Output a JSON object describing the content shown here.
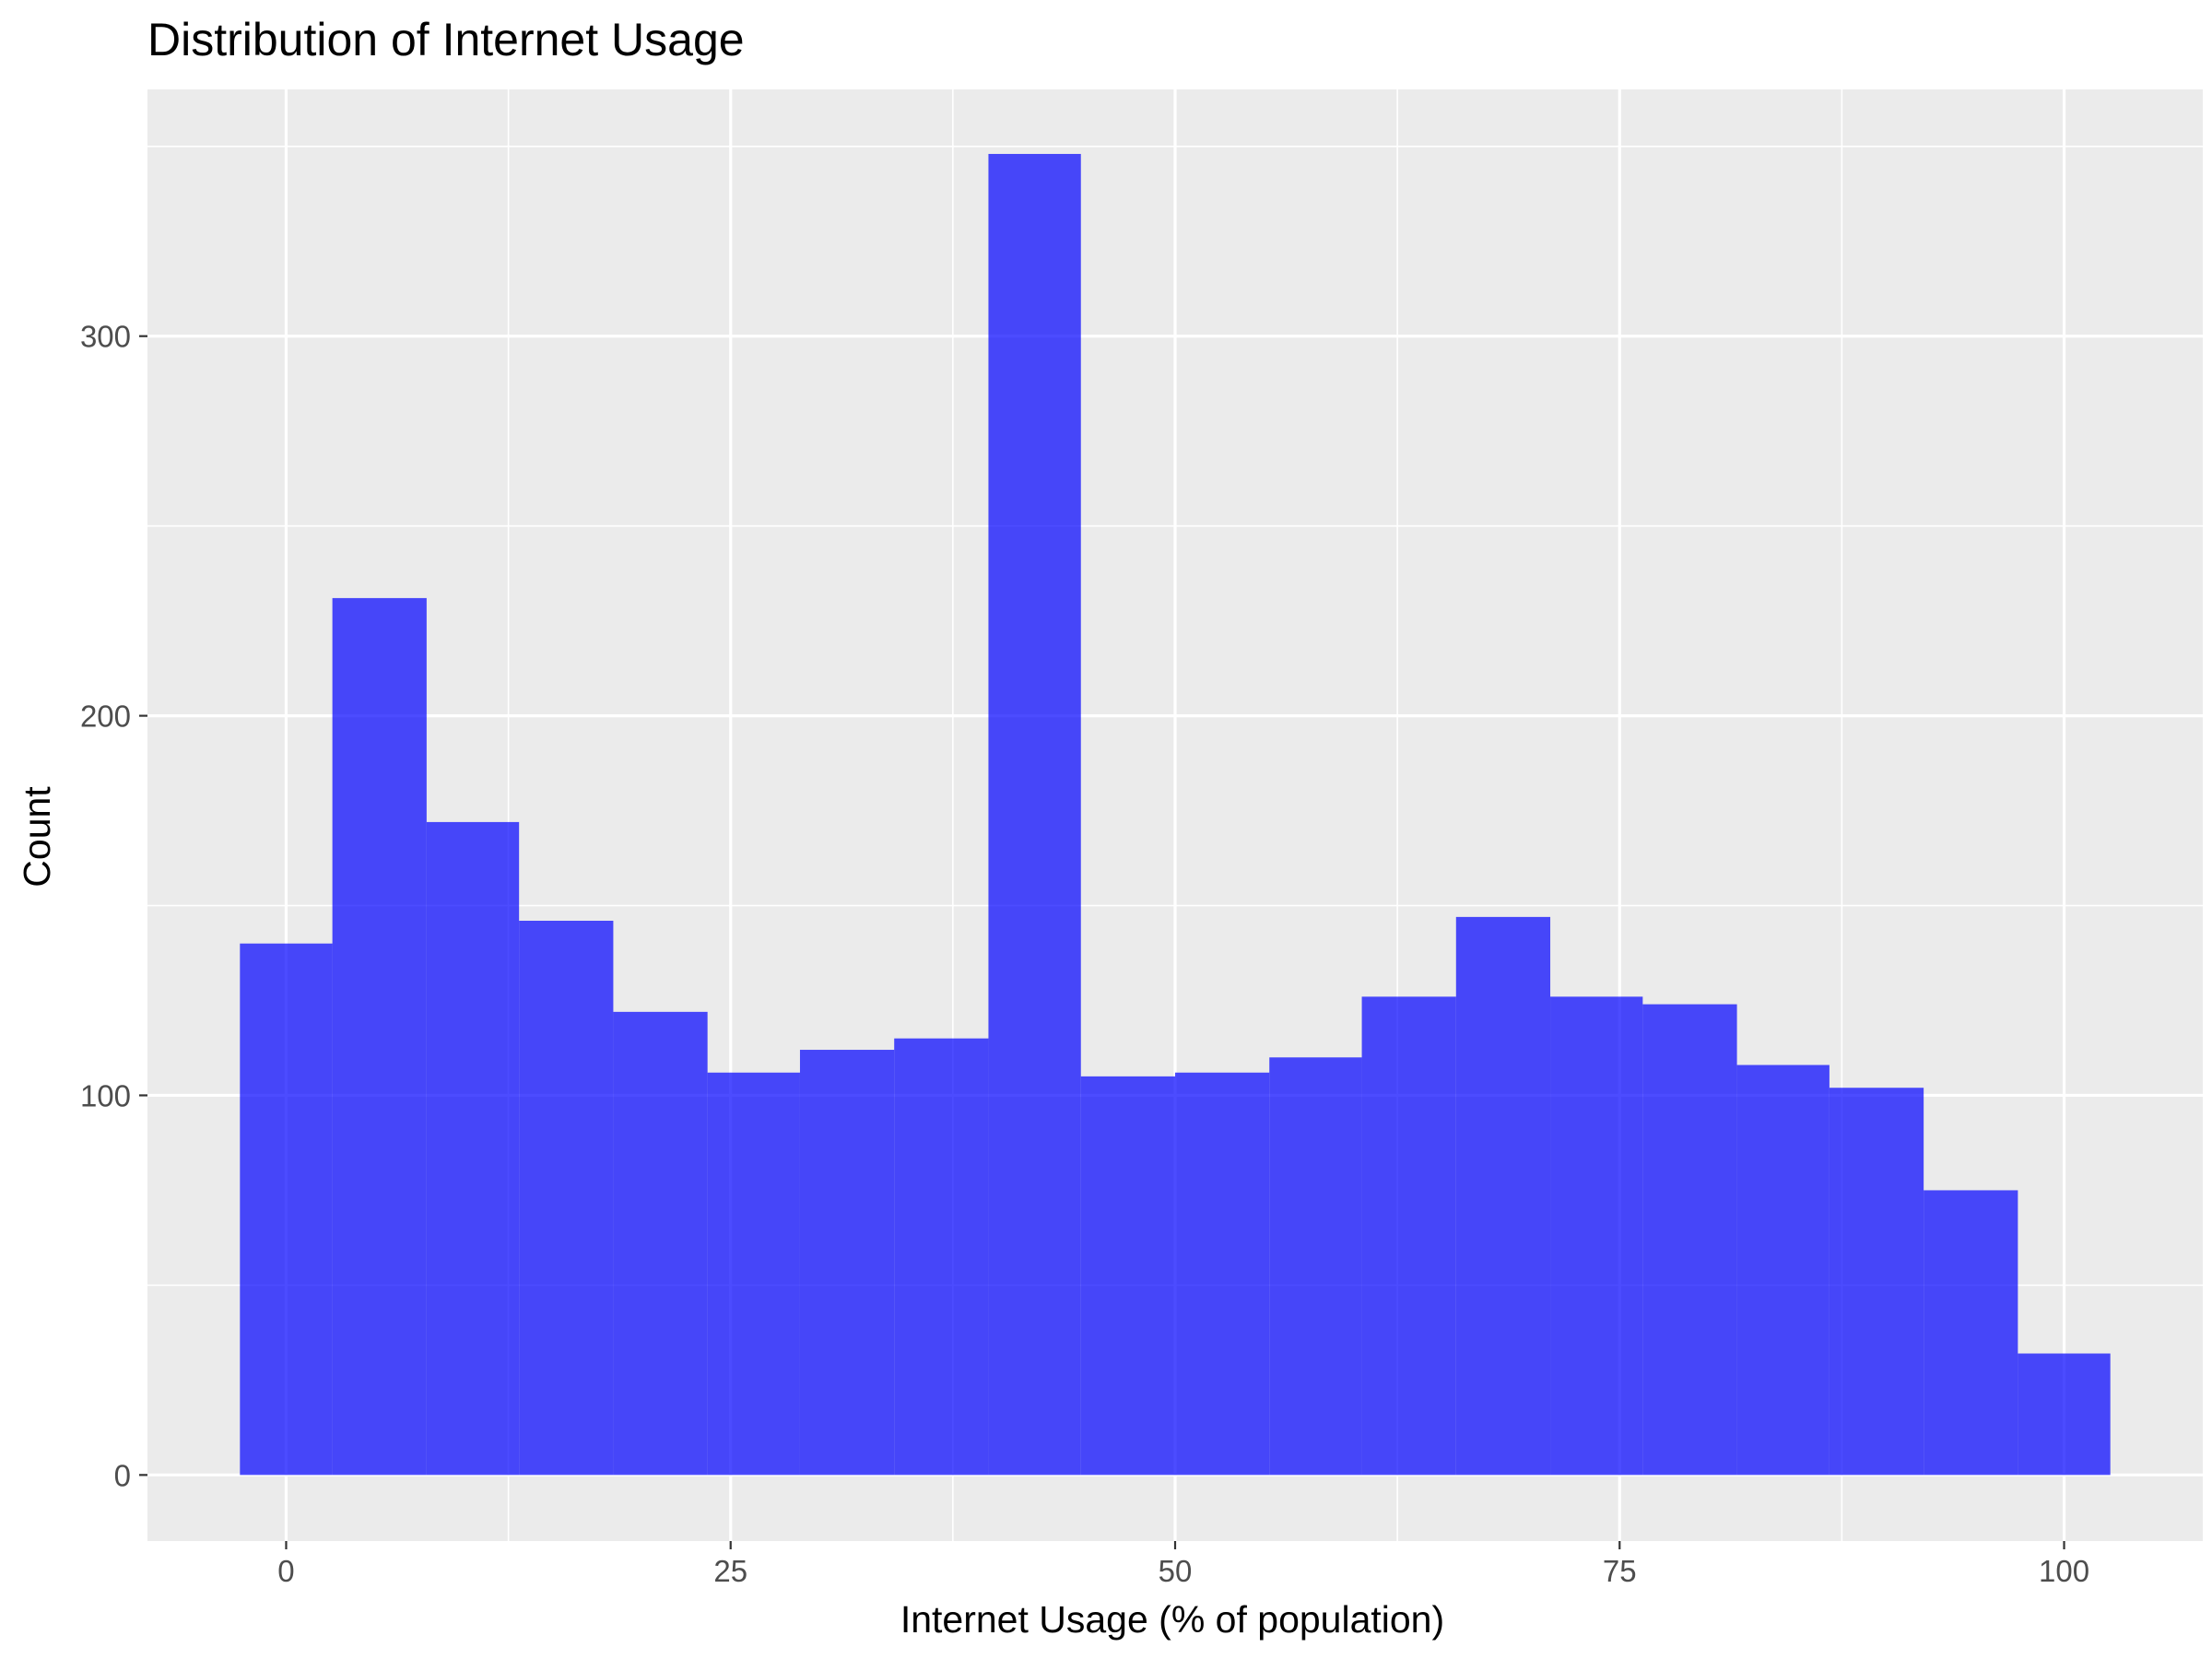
{
  "chart_data": {
    "type": "bar",
    "subtype": "histogram",
    "title": "Distribution of Internet Usage",
    "xlabel": "Internet Usage (% of population)",
    "ylabel": "Count",
    "xlim": [
      -7.8,
      107.8
    ],
    "ylim": [
      -17.4,
      365
    ],
    "x_ticks": [
      0,
      25,
      50,
      75,
      100
    ],
    "x_tick_labels": [
      "0",
      "25",
      "50",
      "75",
      "100"
    ],
    "y_ticks": [
      0,
      100,
      200,
      300
    ],
    "y_tick_labels": [
      "0",
      "100",
      "200",
      "300"
    ],
    "grid": true,
    "bins": [
      {
        "x0": -2.6,
        "x1": 2.6,
        "count": 140
      },
      {
        "x0": 2.6,
        "x1": 7.9,
        "count": 231
      },
      {
        "x0": 7.9,
        "x1": 13.1,
        "count": 172
      },
      {
        "x0": 13.1,
        "x1": 18.4,
        "count": 146
      },
      {
        "x0": 18.4,
        "x1": 23.7,
        "count": 122
      },
      {
        "x0": 23.7,
        "x1": 28.9,
        "count": 106
      },
      {
        "x0": 28.9,
        "x1": 34.2,
        "count": 112
      },
      {
        "x0": 34.2,
        "x1": 39.5,
        "count": 115
      },
      {
        "x0": 39.5,
        "x1": 44.7,
        "count": 348
      },
      {
        "x0": 44.7,
        "x1": 50.0,
        "count": 105
      },
      {
        "x0": 50.0,
        "x1": 55.3,
        "count": 106
      },
      {
        "x0": 55.3,
        "x1": 60.5,
        "count": 110
      },
      {
        "x0": 60.5,
        "x1": 65.8,
        "count": 126
      },
      {
        "x0": 65.8,
        "x1": 71.1,
        "count": 147
      },
      {
        "x0": 71.1,
        "x1": 76.3,
        "count": 126
      },
      {
        "x0": 76.3,
        "x1": 81.6,
        "count": 124
      },
      {
        "x0": 81.6,
        "x1": 86.8,
        "count": 108
      },
      {
        "x0": 86.8,
        "x1": 92.1,
        "count": 102
      },
      {
        "x0": 92.1,
        "x1": 97.4,
        "count": 75
      },
      {
        "x0": 97.4,
        "x1": 102.6,
        "count": 32
      }
    ],
    "colors": {
      "bar_fill": "#0000FF",
      "panel_background": "#EBEBEB",
      "grid_line": "#FFFFFF",
      "tick_label": "#4D4D4D",
      "tick_mark": "#333333"
    }
  }
}
